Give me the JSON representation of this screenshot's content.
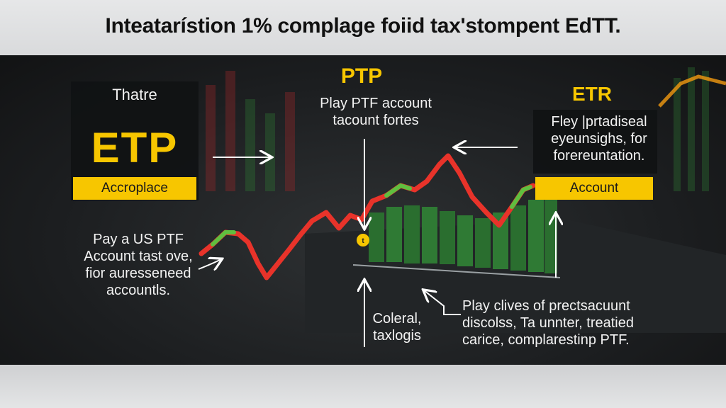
{
  "title": "Inteatarístion 1% complage foiid tax'stompent EdTT.",
  "left_panel": {
    "heading": "Thatre",
    "big_label": "ETP",
    "tag": "Accroplace",
    "note": [
      "Pay a US PTF",
      "Account tast ove,",
      "fior auresseneed",
      "accountls."
    ]
  },
  "center_panel": {
    "heading": "PTP",
    "subtitle": [
      "Play PTF account",
      "tacount fortes"
    ],
    "marker": "t",
    "bottom_note": [
      "Coleral,",
      "taxlogis"
    ],
    "right_note": [
      "Play clives of prectsacuunt",
      "discolss, Ta unnter, treatied",
      "carice, complarestinp PTF."
    ]
  },
  "right_panel": {
    "heading": "ETR",
    "desc": [
      "Fley |prtadiseal",
      "eyeunsighs, for",
      "forereuntation."
    ],
    "tag": "Account"
  },
  "colors": {
    "accent_yellow": "#f7c600",
    "line_red": "#e8332a",
    "line_green": "#5fbf3f",
    "bar_green": "#2f7a34"
  }
}
